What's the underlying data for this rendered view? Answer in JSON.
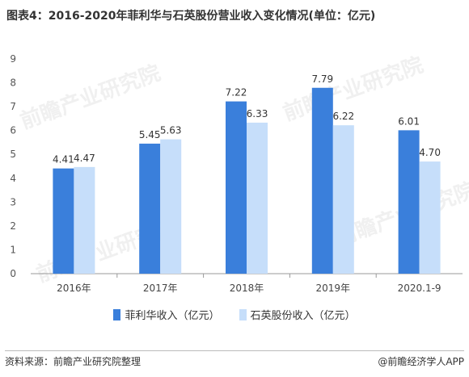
{
  "title": "图表4：2016-2020年菲利华与石英股份营业收入变化情况(单位：亿元)",
  "footer": {
    "source": "资料来源：前瞻产业研究院整理",
    "brand": "@前瞻经济学人APP"
  },
  "watermark_text": "前瞻产业研究院",
  "colors": {
    "series1": "#3A7FDB",
    "series2": "#C6DEFA",
    "axis": "#999999"
  },
  "chart_data": {
    "type": "bar",
    "title": "图表4：2016-2020年菲利华与石英股份营业收入变化情况(单位：亿元)",
    "categories": [
      "2016年",
      "2017年",
      "2018年",
      "2019年",
      "2020.1-9"
    ],
    "series": [
      {
        "name": "菲利华收入（亿元）",
        "values": [
          4.41,
          5.45,
          7.22,
          7.79,
          6.01
        ],
        "labels": [
          "4.41",
          "5.45",
          "7.22",
          "7.79",
          "6.01"
        ]
      },
      {
        "name": "石英股份收入（亿元）",
        "values": [
          4.47,
          5.63,
          6.33,
          6.22,
          4.7
        ],
        "labels": [
          "4.47",
          "5.63",
          "6.33",
          "6.22",
          "4.70"
        ]
      }
    ],
    "yticks": [
      "0",
      "1",
      "2",
      "3",
      "4",
      "5",
      "6",
      "7",
      "8",
      "9"
    ],
    "ylim": [
      0,
      9
    ],
    "grid": false,
    "legend_position": "bottom"
  }
}
